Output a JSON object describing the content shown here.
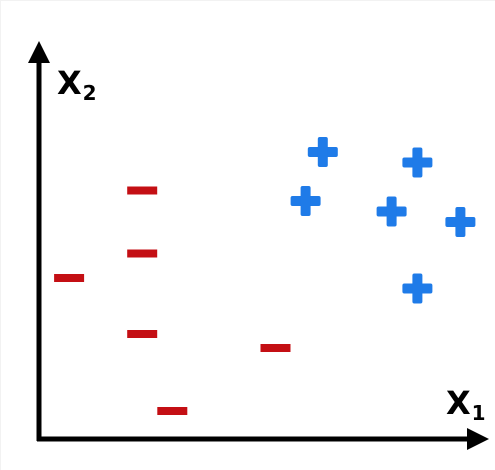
{
  "colors": {
    "axis": "#000000",
    "positive": "#1f7be8",
    "negative": "#c40f14",
    "background": "#ffffff"
  },
  "axes": {
    "x": {
      "name": "X",
      "subscript": "1"
    },
    "y": {
      "name": "X",
      "subscript": "2"
    }
  },
  "chart_data": {
    "type": "scatter",
    "xlabel": "X1",
    "ylabel": "X2",
    "xlim": [
      0,
      10
    ],
    "ylim": [
      0,
      10
    ],
    "grid": false,
    "series": [
      {
        "marker": "plus",
        "color": "#1f7be8",
        "x": [
          6.6,
          8.8,
          6.2,
          8.2,
          9.8,
          8.8
        ],
        "y": [
          8.2,
          7.9,
          6.8,
          6.5,
          6.2,
          4.3
        ]
      },
      {
        "marker": "minus",
        "color": "#c40f14",
        "x": [
          2.4,
          2.4,
          0.7,
          2.4,
          5.5,
          3.1
        ],
        "y": [
          7.1,
          5.3,
          4.6,
          3.0,
          2.6,
          0.8
        ]
      }
    ]
  }
}
